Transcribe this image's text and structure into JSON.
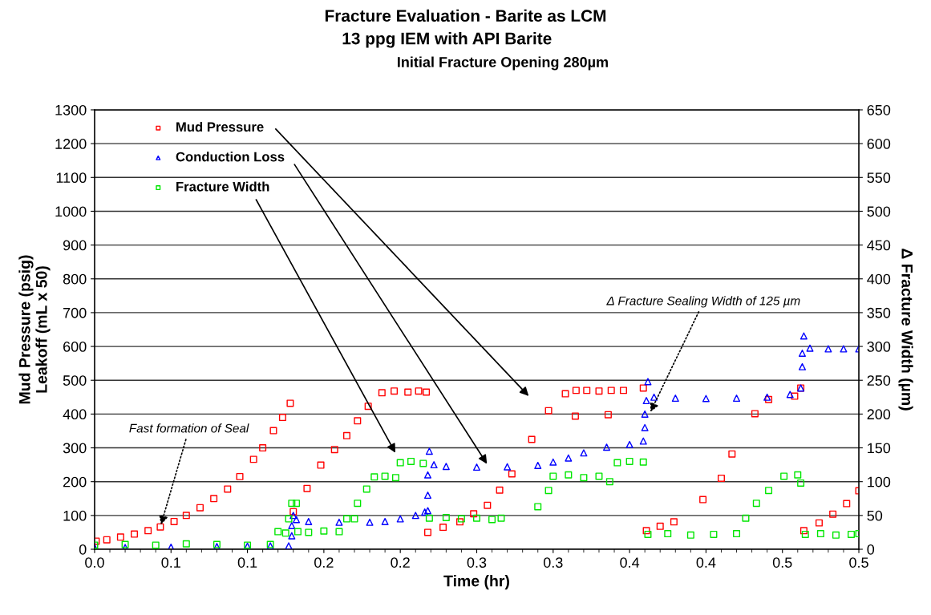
{
  "chart_data": {
    "type": "scatter",
    "title": "Fracture Evaluation - Barite as LCM",
    "subtitle": [
      "13 ppg IEM with API Barite",
      "Initial Fracture Opening 280µm"
    ],
    "xlabel": "Time (hr)",
    "ylabel": "Mud Pressure (psig)\nLeakoff (mL x 50)",
    "y2label": "Δ Fracture Width (µm)",
    "xlim": [
      0,
      0.5
    ],
    "xticks": [
      {
        "value": 0,
        "label": "0.0"
      },
      {
        "value": 0.05,
        "label": "0.1"
      },
      {
        "value": 0.1,
        "label": "0.1"
      },
      {
        "value": 0.15,
        "label": "0.2"
      },
      {
        "value": 0.2,
        "label": "0.2"
      },
      {
        "value": 0.25,
        "label": "0.3"
      },
      {
        "value": 0.3,
        "label": "0.3"
      },
      {
        "value": 0.35,
        "label": "0.4"
      },
      {
        "value": 0.4,
        "label": "0.4"
      },
      {
        "value": 0.45,
        "label": "0.5"
      },
      {
        "value": 0.5,
        "label": "0.5"
      }
    ],
    "ylim": [
      0,
      1300
    ],
    "yticks": [
      0,
      100,
      200,
      300,
      400,
      500,
      600,
      700,
      800,
      900,
      1000,
      1100,
      1200,
      1300
    ],
    "y2lim": [
      0,
      650
    ],
    "y2ticks": [
      0,
      50,
      100,
      150,
      200,
      250,
      300,
      350,
      400,
      450,
      500,
      550,
      600,
      650
    ],
    "grid": "y",
    "legend": "top left",
    "series": [
      {
        "name": "Mud Pressure",
        "color": "#ff0000",
        "marker": "square",
        "x": [
          0.001,
          0.008,
          0.017,
          0.026,
          0.035,
          0.043,
          0.052,
          0.06,
          0.069,
          0.078,
          0.087,
          0.095,
          0.104,
          0.11,
          0.117,
          0.123,
          0.128,
          0.13,
          0.139,
          0.148,
          0.157,
          0.165,
          0.172,
          0.179,
          0.188,
          0.196,
          0.205,
          0.212,
          0.217,
          0.218,
          0.228,
          0.239,
          0.248,
          0.257,
          0.265,
          0.273,
          0.286,
          0.297,
          0.308,
          0.315,
          0.3145,
          0.322,
          0.33,
          0.338,
          0.336,
          0.346,
          0.359,
          0.361,
          0.37,
          0.379,
          0.398,
          0.41,
          0.417,
          0.432,
          0.441,
          0.458,
          0.462,
          0.464,
          0.474,
          0.483,
          0.492,
          0.5
        ],
        "values": [
          24,
          28,
          36,
          45,
          55,
          66,
          82,
          100,
          123,
          150,
          178,
          215,
          266,
          300,
          351,
          390,
          432,
          111,
          180,
          249,
          295,
          336,
          380,
          423,
          463,
          468,
          465,
          468,
          465,
          50,
          65,
          81,
          105,
          130,
          175,
          223,
          325,
          410,
          460,
          470,
          394,
          470,
          468,
          470,
          398,
          470,
          477,
          55,
          68,
          81,
          147,
          210,
          282,
          401,
          443,
          453,
          477,
          55,
          78,
          104,
          135,
          173
        ]
      },
      {
        "name": "Conduction Loss",
        "color": "#0000ff",
        "marker": "triangle",
        "x": [
          0.0,
          0.02,
          0.05,
          0.08,
          0.1,
          0.115,
          0.127,
          0.129,
          0.129,
          0.13,
          0.132,
          0.14,
          0.16,
          0.18,
          0.19,
          0.2,
          0.21,
          0.216,
          0.218,
          0.218,
          0.218,
          0.219,
          0.222,
          0.23,
          0.25,
          0.27,
          0.29,
          0.3,
          0.31,
          0.32,
          0.335,
          0.35,
          0.359,
          0.36,
          0.36,
          0.361,
          0.362,
          0.366,
          0.38,
          0.4,
          0.42,
          0.44,
          0.455,
          0.462,
          0.463,
          0.463,
          0.464,
          0.468,
          0.48,
          0.49,
          0.5
        ],
        "values": [
          5,
          5,
          6,
          8,
          9,
          10,
          10,
          40,
          70,
          100,
          88,
          82,
          80,
          80,
          82,
          90,
          100,
          110,
          114,
          160,
          220,
          290,
          250,
          245,
          243,
          244,
          248,
          258,
          270,
          285,
          302,
          310,
          320,
          360,
          400,
          440,
          496,
          450,
          447,
          446,
          447,
          450,
          458,
          477,
          540,
          580,
          631,
          595,
          593,
          593,
          593
        ]
      },
      {
        "name": "Fracture Width",
        "color": "#00e600",
        "marker": "square",
        "axis": "y2",
        "x": [
          0.0,
          0.02,
          0.04,
          0.06,
          0.08,
          0.1,
          0.115,
          0.12,
          0.125,
          0.127,
          0.129,
          0.132,
          0.133,
          0.14,
          0.15,
          0.16,
          0.165,
          0.17,
          0.172,
          0.178,
          0.183,
          0.19,
          0.197,
          0.2,
          0.207,
          0.215,
          0.219,
          0.23,
          0.24,
          0.25,
          0.26,
          0.266,
          0.29,
          0.297,
          0.3,
          0.31,
          0.32,
          0.33,
          0.337,
          0.342,
          0.35,
          0.359,
          0.362,
          0.375,
          0.39,
          0.405,
          0.42,
          0.426,
          0.433,
          0.441,
          0.451,
          0.46,
          0.462,
          0.465,
          0.475,
          0.485,
          0.495,
          0.5
        ],
        "values": [
          6,
          7,
          6,
          8,
          7,
          6,
          7,
          26,
          24,
          45,
          68,
          68,
          26,
          25,
          27,
          26,
          45,
          45,
          68,
          89,
          107,
          108,
          106,
          128,
          130,
          127,
          46,
          47,
          45,
          46,
          44,
          46,
          63,
          87,
          108,
          110,
          106,
          108,
          100,
          128,
          130,
          129,
          22,
          23,
          21,
          22,
          23,
          46,
          68,
          87,
          108,
          110,
          98,
          22,
          23,
          21,
          22,
          23
        ]
      }
    ],
    "annotations": [
      {
        "text": "Fast formation of Seal",
        "x": 0.043,
        "y": 66
      },
      {
        "text": "Δ Fracture Sealing Width of 125 µm",
        "x": 0.363,
        "y": 400
      }
    ]
  }
}
